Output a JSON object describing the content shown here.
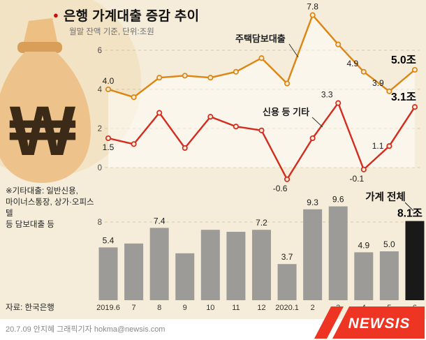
{
  "title": {
    "bullet": "●",
    "text": "은행 가계대출 증감 추이",
    "subtitle": "월말 잔액 기준, 단위:조원"
  },
  "note": "※기타대출: 일반신용,\n마이너스통장, 상가·오피스텔\n등 담보대출 등",
  "source": "자료: 한국은행",
  "footer": {
    "credit": "20.7.09 안지혜 그래픽기자 hokma@newsis.com",
    "logo": "NEWSIS"
  },
  "colors": {
    "background": "#f5ecd9",
    "accent_dot": "#c40f0f",
    "mortgage_line": "#dd8512",
    "credit_line": "#d42b1e",
    "bar": "#9d9b97",
    "bar_highlight": "#191919",
    "grid": "#d9c7a3",
    "newsis_red": "#ee3524"
  },
  "chart_data": [
    {
      "type": "line",
      "title": "은행 가계대출 증감 추이",
      "subtitle": "월말 잔액 기준, 단위:조원",
      "categories": [
        "2019.6",
        "7",
        "8",
        "9",
        "10",
        "11",
        "12",
        "2020.1",
        "2",
        "3",
        "4",
        "5",
        "6"
      ],
      "ylim": [
        -1,
        8
      ],
      "yticks": [
        0,
        2,
        4,
        6
      ],
      "grid": true,
      "series": [
        {
          "name": "주택담보대출",
          "color": "#dd8512",
          "values": [
            4.0,
            3.6,
            4.6,
            4.7,
            4.6,
            4.9,
            5.6,
            4.3,
            7.8,
            6.3,
            4.9,
            3.9,
            5.0
          ],
          "labels": [
            {
              "index": 0,
              "text": "4.0",
              "placement": "above"
            },
            {
              "index": 8,
              "text": "7.8",
              "placement": "above"
            },
            {
              "index": 10,
              "text": "4.9",
              "placement": "above-left"
            },
            {
              "index": 11,
              "text": "3.9",
              "placement": "above-left"
            },
            {
              "index": 12,
              "text": "5.0조",
              "placement": "above-left",
              "emphasis": true
            }
          ]
        },
        {
          "name": "신용 등 기타",
          "color": "#d42b1e",
          "values": [
            1.5,
            1.2,
            2.8,
            1.0,
            2.6,
            2.1,
            1.9,
            -0.6,
            1.5,
            3.3,
            -0.1,
            1.1,
            3.1
          ],
          "labels": [
            {
              "index": 0,
              "text": "1.5",
              "placement": "below"
            },
            {
              "index": 7,
              "text": "-0.6",
              "placement": "below-left"
            },
            {
              "index": 9,
              "text": "3.3",
              "placement": "above-left"
            },
            {
              "index": 10,
              "text": "-0.1",
              "placement": "below-left"
            },
            {
              "index": 11,
              "text": "1.1",
              "placement": "left"
            },
            {
              "index": 12,
              "text": "3.1조",
              "placement": "above-left",
              "emphasis": true
            }
          ]
        }
      ]
    },
    {
      "type": "bar",
      "name": "가계 전체",
      "categories": [
        "2019.6",
        "7",
        "8",
        "9",
        "10",
        "11",
        "12",
        "2020.1",
        "2",
        "3",
        "4",
        "5",
        "6"
      ],
      "values": [
        5.4,
        5.8,
        7.4,
        4.8,
        7.2,
        7.0,
        7.2,
        3.7,
        9.3,
        9.6,
        4.9,
        5.0,
        8.1
      ],
      "bar_labels": [
        "5.4",
        "",
        "7.4",
        "",
        "",
        "",
        "7.2",
        "3.7",
        "9.3",
        "9.6",
        "4.9",
        "5.0",
        "8.1조"
      ],
      "highlight_index": 12,
      "ylim": [
        0,
        10
      ],
      "yticks": [
        8
      ]
    }
  ]
}
